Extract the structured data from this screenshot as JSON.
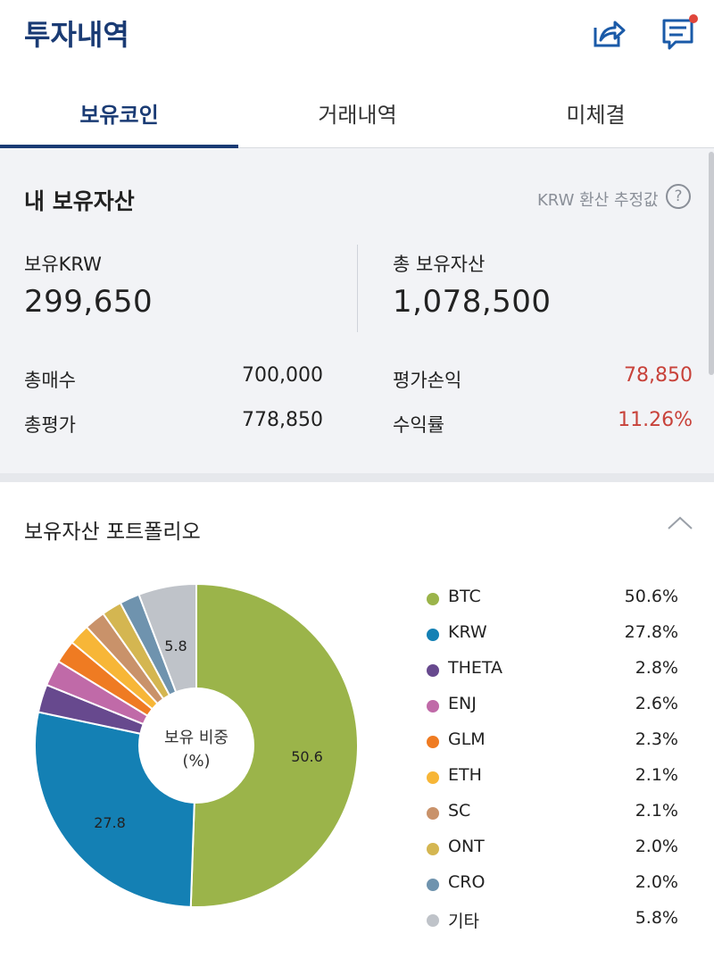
{
  "header": {
    "title": "투자내역",
    "share_icon": "share-icon",
    "message_icon": "message-icon"
  },
  "tabs": [
    {
      "label": "보유코인",
      "active": true
    },
    {
      "label": "거래내역",
      "active": false
    },
    {
      "label": "미체결",
      "active": false
    }
  ],
  "assets": {
    "section_title": "내 보유자산",
    "krw_note": "KRW 환산 추정값",
    "help_icon": "help-icon",
    "krw_label": "보유KRW",
    "krw_value": "299,650",
    "total_label": "총 보유자산",
    "total_value": "1,078,500",
    "buy_label": "총매수",
    "buy_value": "700,000",
    "eval_label": "총평가",
    "eval_value": "778,850",
    "pl_label": "평가손익",
    "pl_value": "78,850",
    "return_label": "수익률",
    "return_value": "11.26%",
    "positive_color": "#c8423a"
  },
  "portfolio": {
    "section_title": "보유자산 포트폴리오",
    "collapse_icon": "chevron-up-icon",
    "center_label_1": "보유 비중",
    "center_label_2": "(%)",
    "slice_labels": {
      "BTC": "50.6",
      "KRW": "27.8",
      "기타": "5.8"
    }
  },
  "chart_data": {
    "type": "pie",
    "categories": [
      "BTC",
      "KRW",
      "THETA",
      "ENJ",
      "GLM",
      "ETH",
      "SC",
      "ONT",
      "CRO",
      "기타"
    ],
    "values": [
      50.6,
      27.8,
      2.8,
      2.6,
      2.3,
      2.1,
      2.1,
      2.0,
      2.0,
      5.8
    ],
    "labels": [
      "50.6%",
      "27.8%",
      "2.8%",
      "2.6%",
      "2.3%",
      "2.1%",
      "2.1%",
      "2.0%",
      "2.0%",
      "5.8%"
    ],
    "colors": [
      "#9bb44a",
      "#1480b4",
      "#67498e",
      "#c06aa8",
      "#ef7b22",
      "#f7b637",
      "#c9926a",
      "#d4b651",
      "#6f93ae",
      "#bfc3c9"
    ],
    "legend_position": "right"
  }
}
